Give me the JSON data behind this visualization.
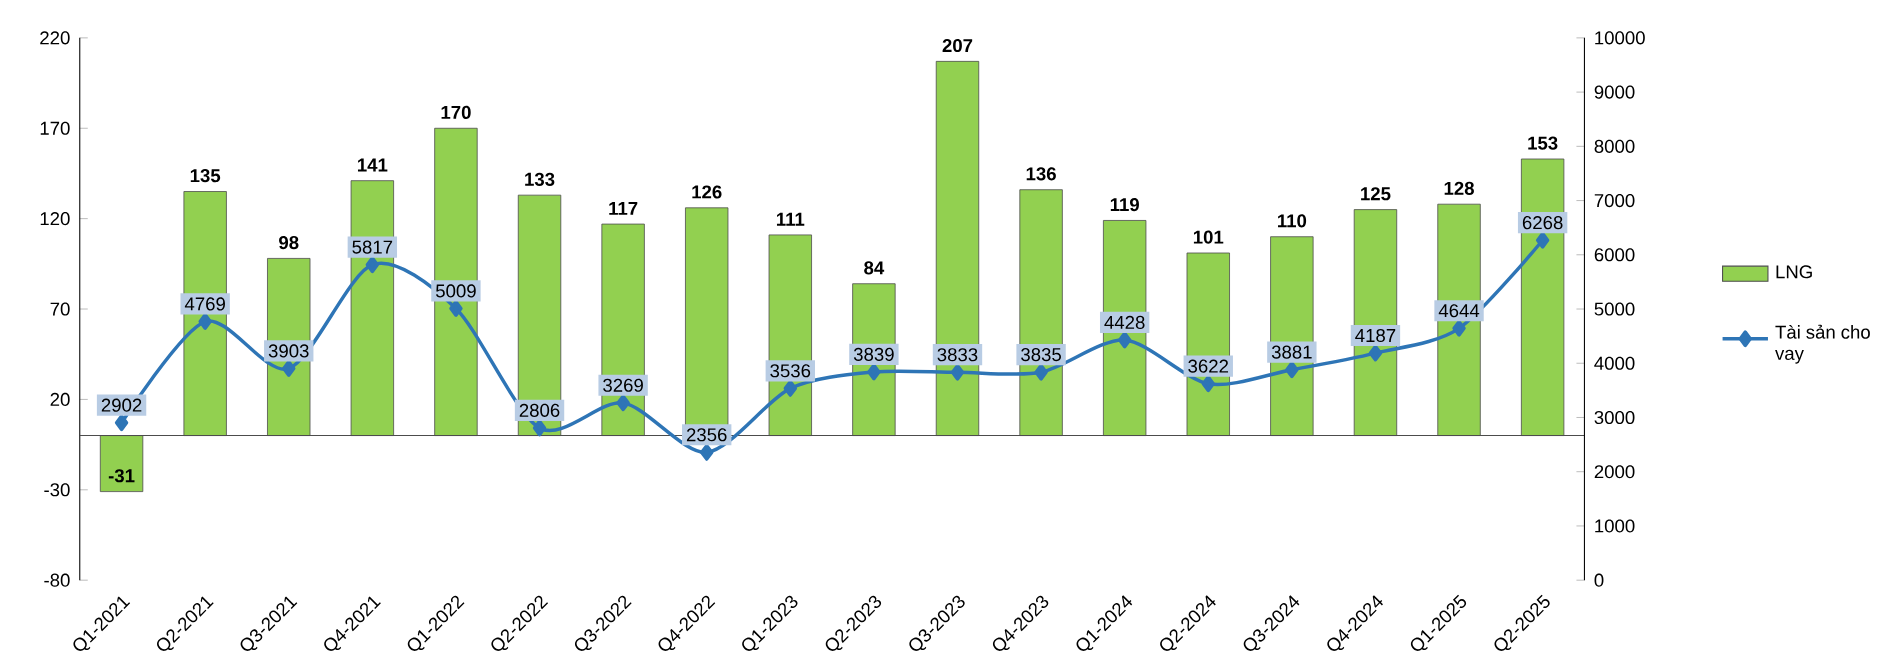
{
  "chart_data": {
    "type": "bar",
    "categories": [
      "Q1-2021",
      "Q2-2021",
      "Q3-2021",
      "Q4-2021",
      "Q1-2022",
      "Q2-2022",
      "Q3-2022",
      "Q4-2022",
      "Q1-2023",
      "Q2-2023",
      "Q3-2023",
      "Q4-2023",
      "Q1-2024",
      "Q2-2024",
      "Q3-2024",
      "Q4-2024",
      "Q1-2025",
      "Q2-2025"
    ],
    "series": [
      {
        "name": "LNG",
        "color": "#92d050",
        "values": [
          -31,
          135,
          98,
          141,
          170,
          133,
          117,
          126,
          111,
          84,
          207,
          136,
          119,
          101,
          110,
          125,
          128,
          153
        ]
      },
      {
        "name": "Tài sản cho vay",
        "type": "line",
        "axis": "y2",
        "color": "#2e75b6",
        "marker": "diamond",
        "values": [
          2902,
          4769,
          3903,
          5817,
          5009,
          2806,
          3269,
          2356,
          3536,
          3839,
          3833,
          3835,
          4428,
          3622,
          3881,
          4187,
          4644,
          6268
        ]
      }
    ],
    "ylim": [
      -80,
      220
    ],
    "yticks": [
      -80,
      -30,
      20,
      70,
      120,
      170,
      220
    ],
    "y2lim": [
      0,
      10000
    ],
    "y2ticks": [
      0,
      1000,
      2000,
      3000,
      4000,
      5000,
      6000,
      7000,
      8000,
      9000,
      10000
    ],
    "data_labels": true,
    "legend": "right",
    "grid": false
  }
}
